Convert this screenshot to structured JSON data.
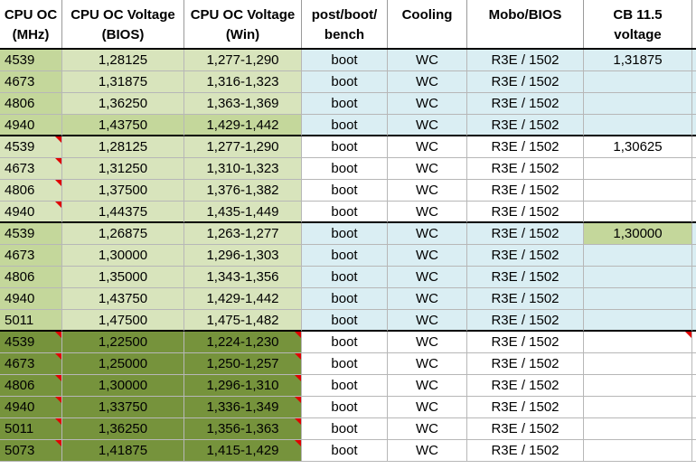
{
  "headers": [
    "CPU OC\n(MHz)",
    "CPU OC Voltage\n(BIOS)",
    "CPU OC Voltage\n(Win)",
    "post/boot/\nbench",
    "Cooling",
    "Mobo/BIOS",
    "CB 11.5\nvoltage"
  ],
  "colors": {
    "light_green": "#d8e4bc",
    "mid_green": "#c4d79b",
    "dark_green": "#76933c",
    "light_blue": "#daeef3",
    "white": "#ffffff",
    "comment_marker": "#e00000"
  },
  "rows": [
    {
      "mhz": "4539",
      "bios": "1,28125",
      "win": "1,277-1,290",
      "boot": "boot",
      "cooling": "WC",
      "mobo": "R3E / 1502",
      "cb": "1,31875"
    },
    {
      "mhz": "4673",
      "bios": "1,31875",
      "win": "1,316-1,323",
      "boot": "boot",
      "cooling": "WC",
      "mobo": "R3E / 1502",
      "cb": ""
    },
    {
      "mhz": "4806",
      "bios": "1,36250",
      "win": "1,363-1,369",
      "boot": "boot",
      "cooling": "WC",
      "mobo": "R3E / 1502",
      "cb": ""
    },
    {
      "mhz": "4940",
      "bios": "1,43750",
      "win": "1,429-1,442",
      "boot": "boot",
      "cooling": "WC",
      "mobo": "R3E / 1502",
      "cb": ""
    },
    {
      "mhz": "4539",
      "bios": "1,28125",
      "win": "1,277-1,290",
      "boot": "boot",
      "cooling": "WC",
      "mobo": "R3E / 1502",
      "cb": "1,30625"
    },
    {
      "mhz": "4673",
      "bios": "1,31250",
      "win": "1,310-1,323",
      "boot": "boot",
      "cooling": "WC",
      "mobo": "R3E / 1502",
      "cb": ""
    },
    {
      "mhz": "4806",
      "bios": "1,37500",
      "win": "1,376-1,382",
      "boot": "boot",
      "cooling": "WC",
      "mobo": "R3E / 1502",
      "cb": ""
    },
    {
      "mhz": "4940",
      "bios": "1,44375",
      "win": "1,435-1,449",
      "boot": "boot",
      "cooling": "WC",
      "mobo": "R3E / 1502",
      "cb": ""
    },
    {
      "mhz": "4539",
      "bios": "1,26875",
      "win": "1,263-1,277",
      "boot": "boot",
      "cooling": "WC",
      "mobo": "R3E / 1502",
      "cb": "1,30000"
    },
    {
      "mhz": "4673",
      "bios": "1,30000",
      "win": "1,296-1,303",
      "boot": "boot",
      "cooling": "WC",
      "mobo": "R3E / 1502",
      "cb": ""
    },
    {
      "mhz": "4806",
      "bios": "1,35000",
      "win": "1,343-1,356",
      "boot": "boot",
      "cooling": "WC",
      "mobo": "R3E / 1502",
      "cb": ""
    },
    {
      "mhz": "4940",
      "bios": "1,43750",
      "win": "1,429-1,442",
      "boot": "boot",
      "cooling": "WC",
      "mobo": "R3E / 1502",
      "cb": ""
    },
    {
      "mhz": "5011",
      "bios": "1,47500",
      "win": "1,475-1,482",
      "boot": "boot",
      "cooling": "WC",
      "mobo": "R3E / 1502",
      "cb": ""
    },
    {
      "mhz": "4539",
      "bios": "1,22500",
      "win": "1,224-1,230",
      "boot": "boot",
      "cooling": "WC",
      "mobo": "R3E / 1502",
      "cb": ""
    },
    {
      "mhz": "4673",
      "bios": "1,25000",
      "win": "1,250-1,257",
      "boot": "boot",
      "cooling": "WC",
      "mobo": "R3E / 1502",
      "cb": ""
    },
    {
      "mhz": "4806",
      "bios": "1,30000",
      "win": "1,296-1,310",
      "boot": "boot",
      "cooling": "WC",
      "mobo": "R3E / 1502",
      "cb": ""
    },
    {
      "mhz": "4940",
      "bios": "1,33750",
      "win": "1,336-1,349",
      "boot": "boot",
      "cooling": "WC",
      "mobo": "R3E / 1502",
      "cb": ""
    },
    {
      "mhz": "5011",
      "bios": "1,36250",
      "win": "1,356-1,363",
      "boot": "boot",
      "cooling": "WC",
      "mobo": "R3E / 1502",
      "cb": ""
    },
    {
      "mhz": "5073",
      "bios": "1,41875",
      "win": "1,415-1,429",
      "boot": "boot",
      "cooling": "WC",
      "mobo": "R3E / 1502",
      "cb": ""
    }
  ]
}
